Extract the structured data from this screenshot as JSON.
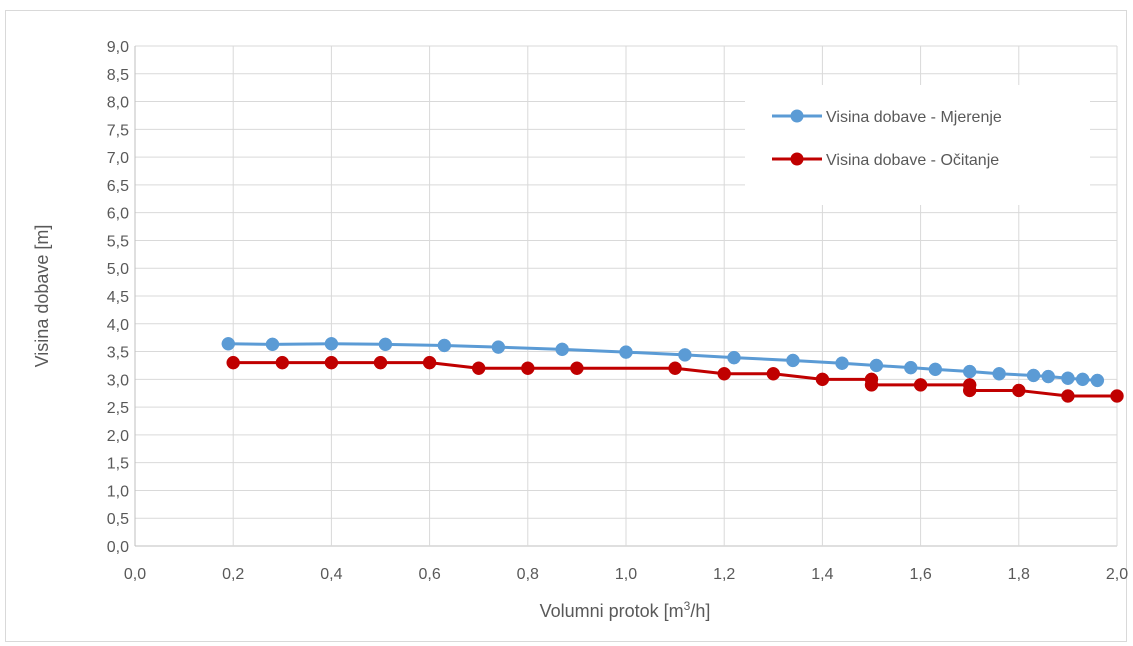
{
  "chart_data": {
    "type": "line",
    "title": "",
    "xlabel": "Volumni protok [m³/h]",
    "xlabel_parts": {
      "prefix": "Volumni protok [m",
      "superscript": "3",
      "suffix": "/h]"
    },
    "ylabel": "Visina dobave [m]",
    "xlim": [
      0,
      2.0
    ],
    "ylim": [
      0,
      9.0
    ],
    "x_ticks": [
      "0,0",
      "0,2",
      "0,4",
      "0,6",
      "0,8",
      "1,0",
      "1,2",
      "1,4",
      "1,6",
      "1,8",
      "2,0"
    ],
    "y_ticks": [
      "0,0",
      "0,5",
      "1,0",
      "1,5",
      "2,0",
      "2,5",
      "3,0",
      "3,5",
      "4,0",
      "4,5",
      "5,0",
      "5,5",
      "6,0",
      "6,5",
      "7,0",
      "7,5",
      "8,0",
      "8,5",
      "9,0"
    ],
    "grid": true,
    "legend_position": "top-right",
    "series": [
      {
        "name": "Visina dobave - Mjerenje",
        "color": "#5b9bd5",
        "points": [
          [
            0.19,
            3.64
          ],
          [
            0.28,
            3.63
          ],
          [
            0.4,
            3.64
          ],
          [
            0.51,
            3.63
          ],
          [
            0.63,
            3.61
          ],
          [
            0.74,
            3.58
          ],
          [
            0.87,
            3.54
          ],
          [
            1.0,
            3.49
          ],
          [
            1.12,
            3.44
          ],
          [
            1.22,
            3.39
          ],
          [
            1.34,
            3.34
          ],
          [
            1.44,
            3.29
          ],
          [
            1.51,
            3.25
          ],
          [
            1.58,
            3.21
          ],
          [
            1.63,
            3.18
          ],
          [
            1.7,
            3.14
          ],
          [
            1.76,
            3.1
          ],
          [
            1.83,
            3.07
          ],
          [
            1.86,
            3.05
          ],
          [
            1.9,
            3.02
          ],
          [
            1.93,
            3.0
          ],
          [
            1.96,
            2.98
          ]
        ]
      },
      {
        "name": "Visina dobave - Očitanje",
        "color": "#c00000",
        "points": [
          [
            0.2,
            3.3
          ],
          [
            0.3,
            3.3
          ],
          [
            0.4,
            3.3
          ],
          [
            0.5,
            3.3
          ],
          [
            0.6,
            3.3
          ],
          [
            0.7,
            3.2
          ],
          [
            0.8,
            3.2
          ],
          [
            0.9,
            3.2
          ],
          [
            1.1,
            3.2
          ],
          [
            1.2,
            3.1
          ],
          [
            1.3,
            3.1
          ],
          [
            1.4,
            3.0
          ],
          [
            1.5,
            3.0
          ],
          [
            1.5,
            2.9
          ],
          [
            1.6,
            2.9
          ],
          [
            1.7,
            2.9
          ],
          [
            1.7,
            2.8
          ],
          [
            1.8,
            2.8
          ],
          [
            1.9,
            2.7
          ],
          [
            2.0,
            2.7
          ]
        ]
      }
    ]
  }
}
